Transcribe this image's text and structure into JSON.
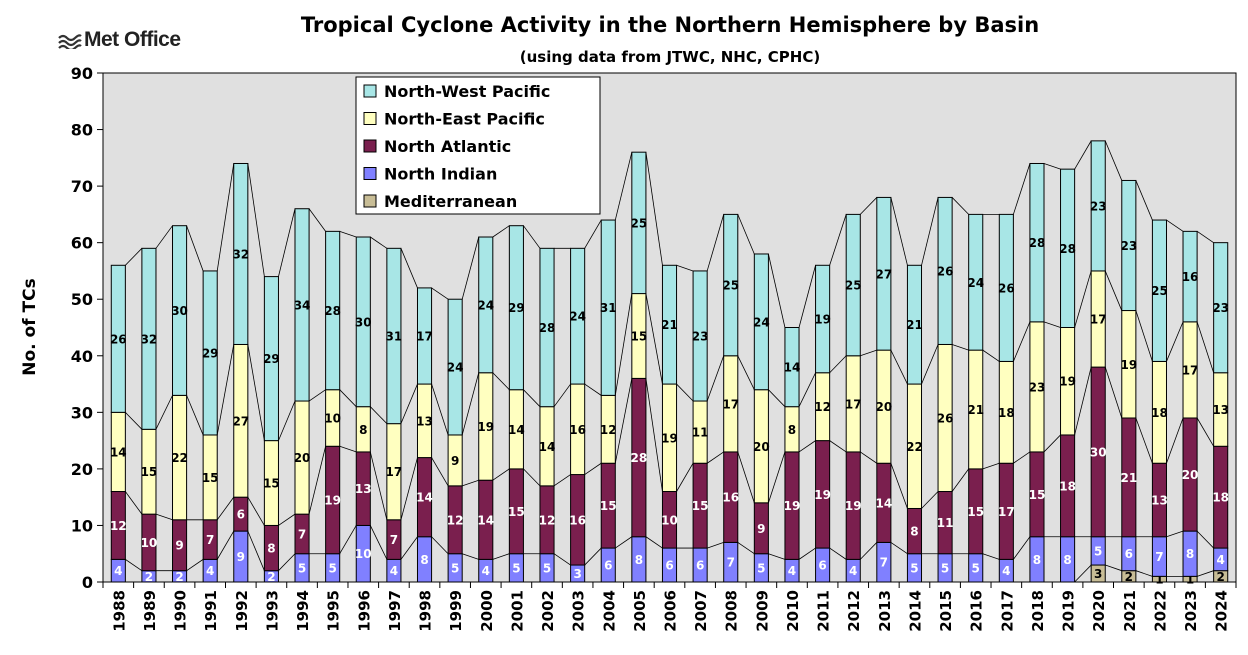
{
  "logo": {
    "text": "Met Office",
    "icon": "met-office-wave-icon"
  },
  "chart_data": {
    "type": "bar",
    "stacked": true,
    "title": "Tropical Cyclone Activity in the Northern Hemisphere by Basin",
    "subtitle": "(using data from JTWC, NHC, CPHC)",
    "xlabel": "",
    "ylabel": "No. of TCs",
    "ylim": [
      0,
      90
    ],
    "yticks": [
      0,
      10,
      20,
      30,
      40,
      50,
      60,
      70,
      80,
      90
    ],
    "grid": false,
    "legend_position": "top-left",
    "background": "#e0e0e0",
    "categories": [
      "1988",
      "1989",
      "1990",
      "1991",
      "1992",
      "1993",
      "1994",
      "1995",
      "1996",
      "1997",
      "1998",
      "1999",
      "2000",
      "2001",
      "2002",
      "2003",
      "2004",
      "2005",
      "2006",
      "2007",
      "2008",
      "2009",
      "2010",
      "2011",
      "2012",
      "2013",
      "2014",
      "2015",
      "2016",
      "2017",
      "2018",
      "2019",
      "2020",
      "2021",
      "2022",
      "2023",
      "2024"
    ],
    "series": [
      {
        "name": "Mediterranean",
        "color": "#c8bd96",
        "values": [
          0,
          0,
          0,
          0,
          0,
          0,
          0,
          0,
          0,
          0,
          0,
          0,
          0,
          0,
          0,
          0,
          0,
          0,
          0,
          0,
          0,
          0,
          0,
          0,
          0,
          0,
          0,
          0,
          0,
          0,
          0,
          0,
          3,
          2,
          1,
          1,
          2
        ]
      },
      {
        "name": "North Indian",
        "color": "#8080ff",
        "values": [
          4,
          2,
          2,
          4,
          9,
          2,
          5,
          5,
          10,
          4,
          8,
          5,
          4,
          5,
          5,
          3,
          6,
          8,
          6,
          6,
          7,
          5,
          4,
          6,
          4,
          7,
          5,
          5,
          5,
          4,
          8,
          8,
          5,
          6,
          7,
          8,
          4
        ]
      },
      {
        "name": "North Atlantic",
        "color": "#7a1f4e",
        "values": [
          12,
          10,
          9,
          7,
          6,
          8,
          7,
          19,
          13,
          7,
          14,
          12,
          14,
          15,
          12,
          16,
          15,
          28,
          10,
          15,
          16,
          9,
          19,
          19,
          19,
          14,
          8,
          11,
          15,
          17,
          15,
          18,
          30,
          21,
          13,
          20,
          18
        ]
      },
      {
        "name": "North-East Pacific",
        "color": "#ffffc0",
        "values": [
          14,
          15,
          22,
          15,
          27,
          15,
          20,
          10,
          8,
          17,
          13,
          9,
          19,
          14,
          14,
          16,
          12,
          15,
          19,
          11,
          17,
          20,
          8,
          12,
          17,
          20,
          22,
          26,
          21,
          18,
          23,
          19,
          17,
          19,
          18,
          17,
          13
        ]
      },
      {
        "name": "North-West Pacific",
        "color": "#a8e6e6",
        "values": [
          26,
          32,
          30,
          29,
          32,
          29,
          34,
          28,
          30,
          31,
          17,
          24,
          24,
          29,
          28,
          24,
          31,
          25,
          21,
          23,
          25,
          24,
          14,
          19,
          25,
          27,
          21,
          26,
          24,
          26,
          28,
          28,
          23,
          23,
          25,
          16,
          23
        ]
      }
    ],
    "legend_order": [
      "North-West Pacific",
      "North-East Pacific",
      "North Atlantic",
      "North Indian",
      "Mediterranean"
    ]
  }
}
